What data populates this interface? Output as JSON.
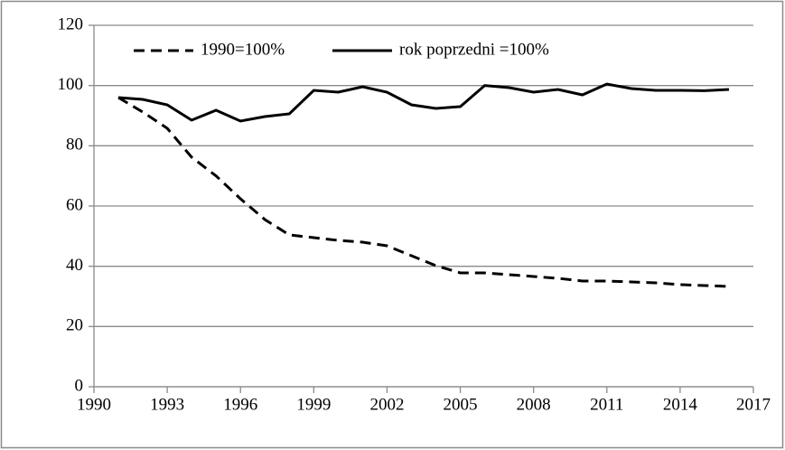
{
  "chart_data": {
    "type": "line",
    "x": [
      1991,
      1992,
      1993,
      1994,
      1995,
      1996,
      1997,
      1998,
      1999,
      2000,
      2001,
      2002,
      2003,
      2004,
      2005,
      2006,
      2007,
      2008,
      2009,
      2010,
      2011,
      2012,
      2013,
      2014,
      2015,
      2016
    ],
    "series": [
      {
        "name": "1990=100%",
        "color": "#000000",
        "line_style": "dashed",
        "values": [
          96,
          91.2,
          85.8,
          76.2,
          70,
          62.4,
          55.5,
          50.4,
          49.5,
          48.6,
          48,
          46.8,
          43.5,
          40.2,
          37.8,
          37.8,
          37.2,
          36.6,
          36,
          35.1,
          35.1,
          34.8,
          34.5,
          33.9,
          33.6,
          33.3
        ]
      },
      {
        "name": "rok poprzedni =100%",
        "color": "#000000",
        "line_style": "solid",
        "values": [
          96,
          95.4,
          93.6,
          88.5,
          91.8,
          88.2,
          89.7,
          90.6,
          98.4,
          97.8,
          99.6,
          97.8,
          93.6,
          92.4,
          93,
          100,
          99.3,
          97.8,
          98.7,
          96.9,
          100.5,
          99,
          98.4,
          98.4,
          98.3,
          98.7
        ]
      }
    ],
    "xlim": [
      1990,
      2017
    ],
    "xticks": [
      1990,
      1993,
      1996,
      1999,
      2002,
      2005,
      2008,
      2011,
      2014,
      2017
    ],
    "ylim": [
      0,
      120
    ],
    "yticks": [
      0,
      20,
      40,
      60,
      80,
      100,
      120
    ],
    "grid": true,
    "legend": "top"
  }
}
